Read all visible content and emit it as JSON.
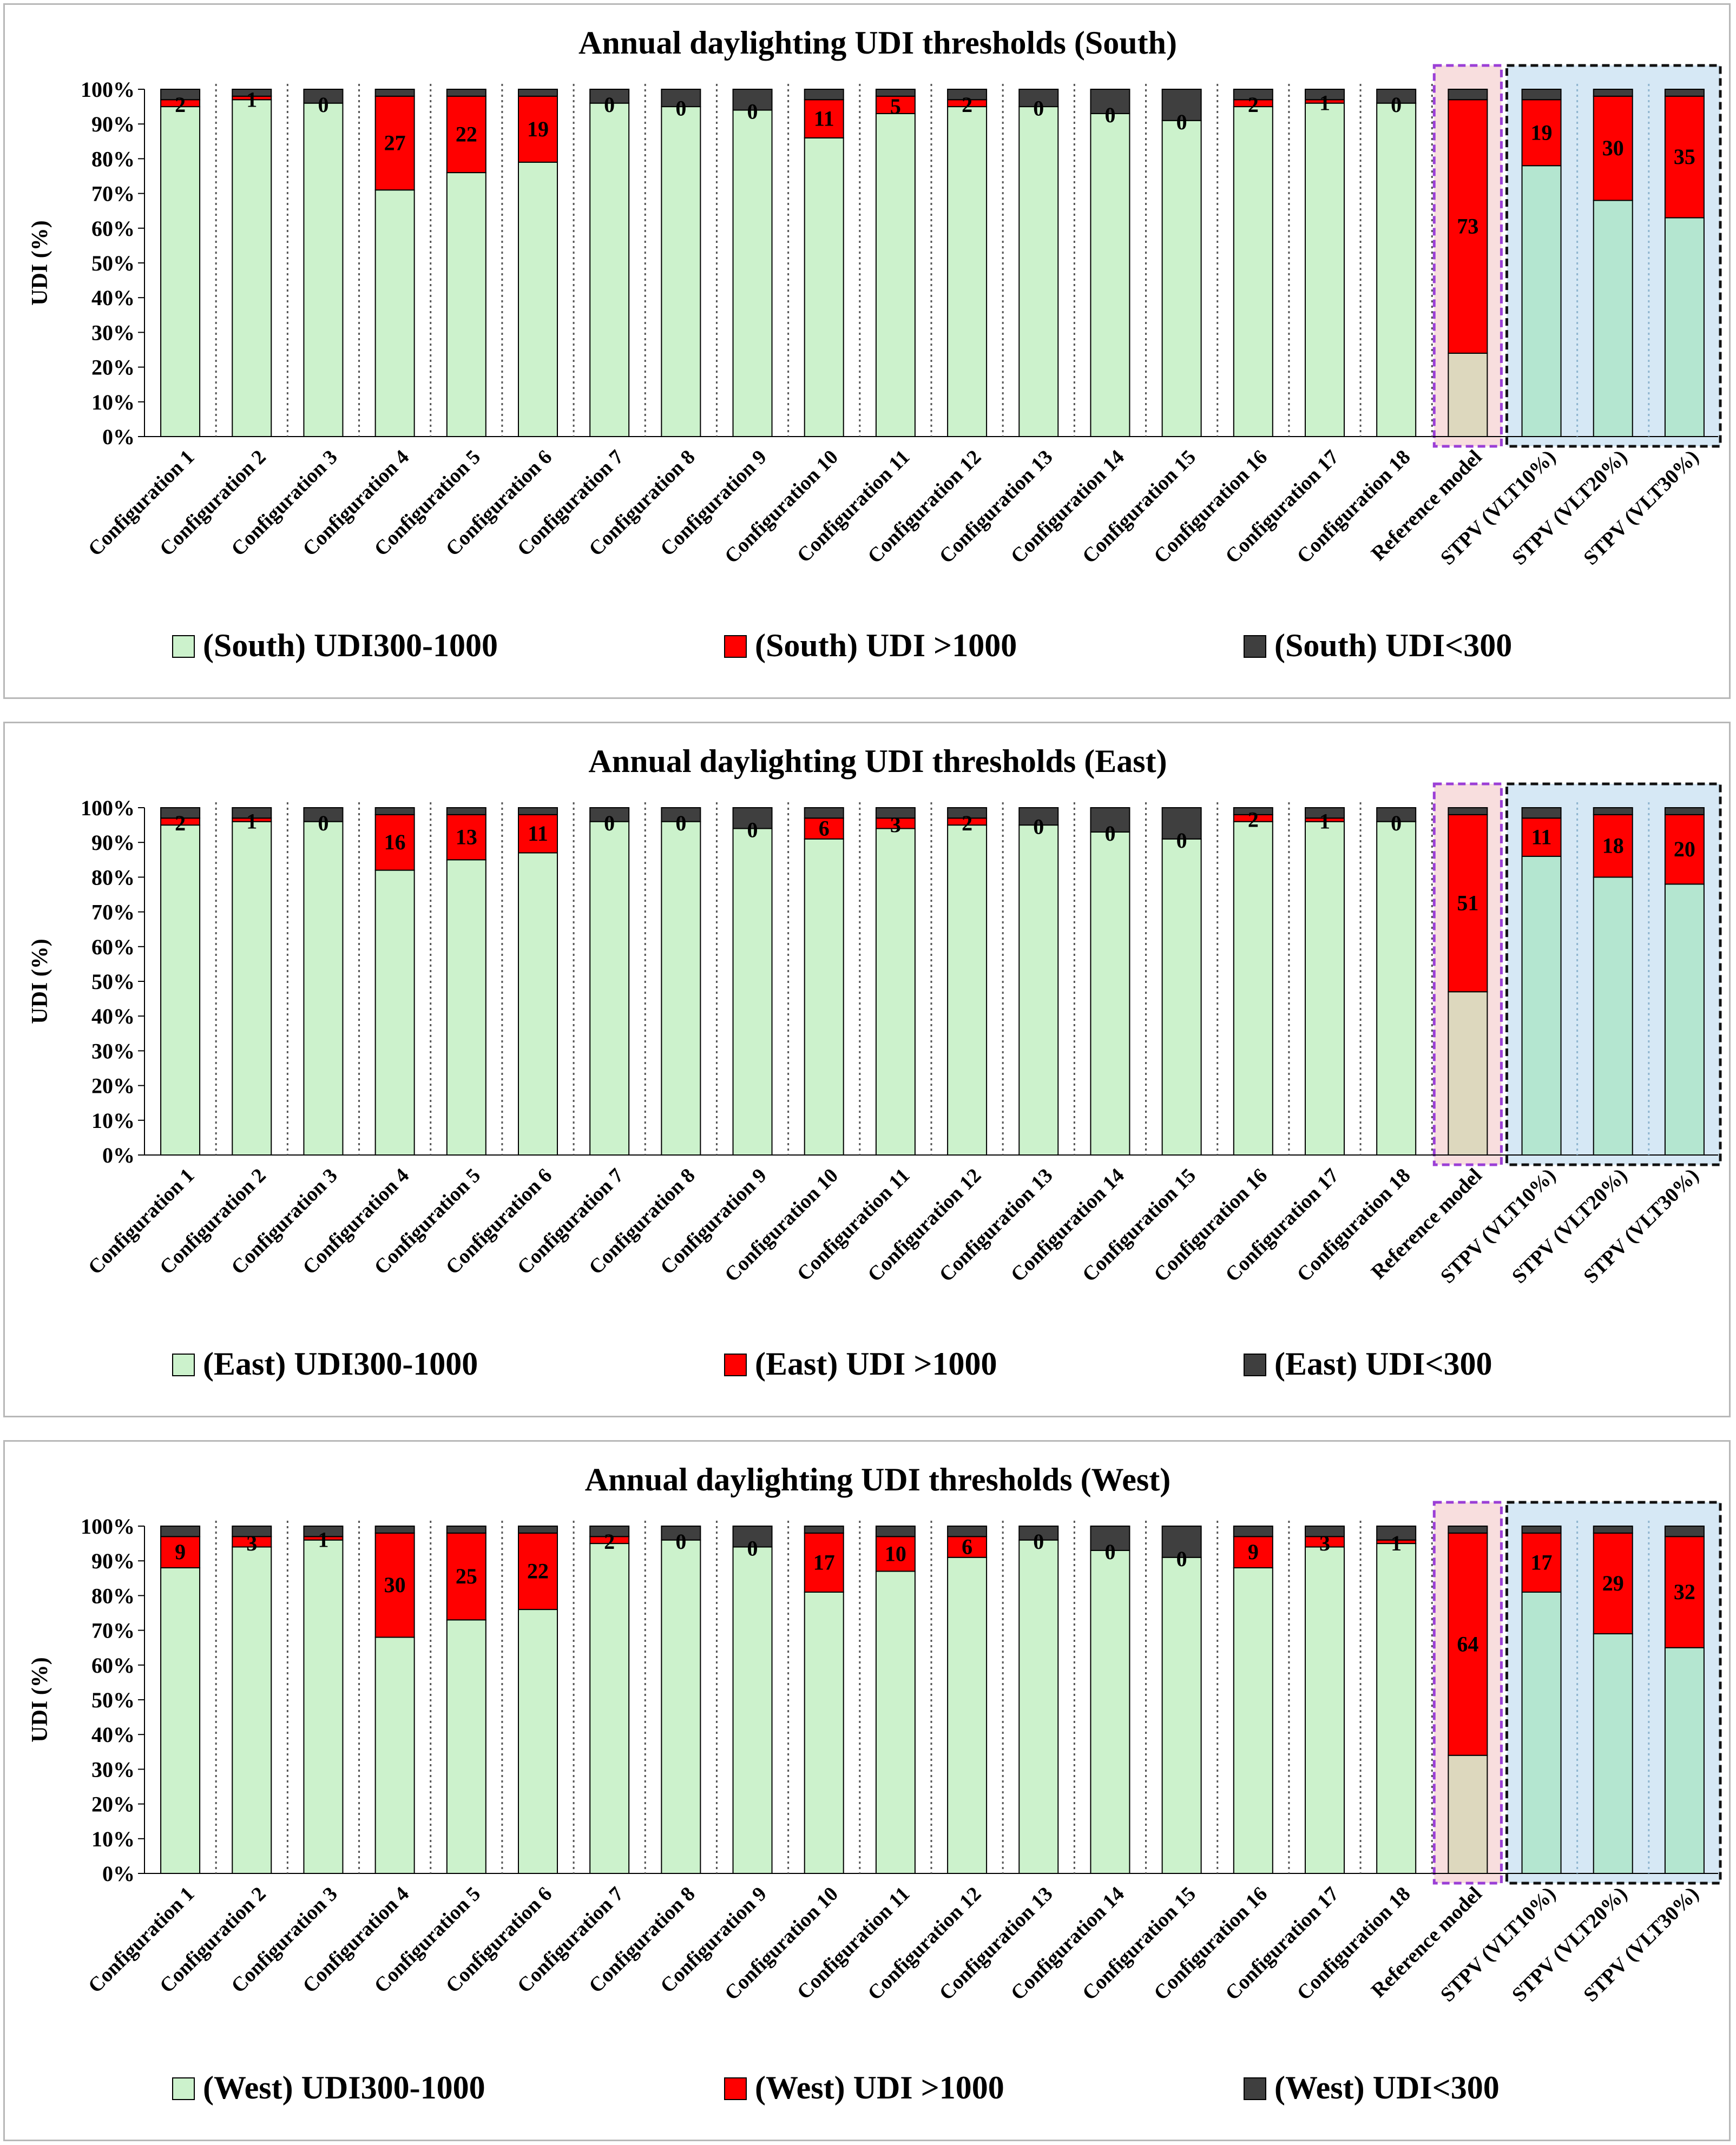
{
  "chart_data": [
    {
      "type": "bar",
      "stacked": true,
      "title": "Annual daylighting UDI thresholds (South)",
      "ylabel": "UDI (%)",
      "xlabel": "",
      "ylim": [
        0,
        100
      ],
      "yticks": [
        "0%",
        "10%",
        "20%",
        "30%",
        "40%",
        "50%",
        "60%",
        "70%",
        "80%",
        "90%",
        "100%"
      ],
      "categories": [
        "Configuration 1",
        "Configuration 2",
        "Configuration 3",
        "Configuration 4",
        "Configuration 5",
        "Configuration 6",
        "Configuration 7",
        "Configuration 8",
        "Configuration 9",
        "Configuration 10",
        "Configuration 11",
        "Configuration 12",
        "Configuration 13",
        "Configuration 14",
        "Configuration 15",
        "Configuration 16",
        "Configuration 17",
        "Configuration 18",
        "Reference model",
        "STPV (VLT10%)",
        "STPV (VLT20%)",
        "STPV (VLT30%)"
      ],
      "series": [
        {
          "name": "(South) UDI300-1000",
          "values": [
            95,
            97,
            96,
            71,
            76,
            79,
            96,
            95,
            94,
            86,
            93,
            95,
            95,
            93,
            91,
            95,
            96,
            96,
            24,
            78,
            68,
            63
          ]
        },
        {
          "name": "(South) UDI >1000",
          "values": [
            2,
            1,
            0,
            27,
            22,
            19,
            0,
            0,
            0,
            11,
            5,
            2,
            0,
            0,
            0,
            2,
            1,
            0,
            73,
            19,
            30,
            35
          ]
        },
        {
          "name": "(South) UDI<300",
          "values": [
            3,
            2,
            4,
            2,
            2,
            2,
            4,
            5,
            6,
            3,
            2,
            3,
            5,
            7,
            9,
            3,
            3,
            4,
            3,
            3,
            2,
            2
          ]
        }
      ],
      "data_labels": [
        "2",
        "1",
        "0",
        "27",
        "22",
        "19",
        "0",
        "0",
        "0",
        "11",
        "5",
        "2",
        "0",
        "0",
        "0",
        "2",
        "1",
        "0",
        "73",
        "19",
        "30",
        "35"
      ],
      "legend_position": "bottom"
    },
    {
      "type": "bar",
      "stacked": true,
      "title": "Annual daylighting UDI thresholds (East)",
      "ylabel": "UDI (%)",
      "xlabel": "",
      "ylim": [
        0,
        100
      ],
      "yticks": [
        "0%",
        "10%",
        "20%",
        "30%",
        "40%",
        "50%",
        "60%",
        "70%",
        "80%",
        "90%",
        "100%"
      ],
      "categories": [
        "Configuration 1",
        "Configuration 2",
        "Configuration 3",
        "Configuration 4",
        "Configuration 5",
        "Configuration 6",
        "Configuration 7",
        "Configuration 8",
        "Configuration 9",
        "Configuration 10",
        "Configuration 11",
        "Configuration 12",
        "Configuration 13",
        "Configuration 14",
        "Configuration 15",
        "Configuration 16",
        "Configuration 17",
        "Configuration 18",
        "Reference model",
        "STPV (VLT10%)",
        "STPV (VLT20%)",
        "STPV (VLT30%)"
      ],
      "series": [
        {
          "name": "(East) UDI300-1000",
          "values": [
            95,
            96,
            96,
            82,
            85,
            87,
            96,
            96,
            94,
            91,
            94,
            95,
            95,
            93,
            91,
            96,
            96,
            96,
            47,
            86,
            80,
            78
          ]
        },
        {
          "name": "(East) UDI >1000",
          "values": [
            2,
            1,
            0,
            16,
            13,
            11,
            0,
            0,
            0,
            6,
            3,
            2,
            0,
            0,
            0,
            2,
            1,
            0,
            51,
            11,
            18,
            20
          ]
        },
        {
          "name": "(East) UDI<300",
          "values": [
            3,
            3,
            4,
            2,
            2,
            2,
            4,
            4,
            6,
            3,
            3,
            3,
            5,
            7,
            9,
            2,
            3,
            4,
            2,
            3,
            2,
            2
          ]
        }
      ],
      "data_labels": [
        "2",
        "1",
        "0",
        "16",
        "13",
        "11",
        "0",
        "0",
        "0",
        "6",
        "3",
        "2",
        "0",
        "0",
        "0",
        "2",
        "1",
        "0",
        "51",
        "11",
        "18",
        "20"
      ],
      "legend_position": "bottom"
    },
    {
      "type": "bar",
      "stacked": true,
      "title": "Annual daylighting UDI thresholds (West)",
      "ylabel": "UDI (%)",
      "xlabel": "",
      "ylim": [
        0,
        100
      ],
      "yticks": [
        "0%",
        "10%",
        "20%",
        "30%",
        "40%",
        "50%",
        "60%",
        "70%",
        "80%",
        "90%",
        "100%"
      ],
      "categories": [
        "Configuration 1",
        "Configuration 2",
        "Configuration 3",
        "Configuration 4",
        "Configuration 5",
        "Configuration 6",
        "Configuration 7",
        "Configuration 8",
        "Configuration 9",
        "Configuration 10",
        "Configuration 11",
        "Configuration 12",
        "Configuration 13",
        "Configuration 14",
        "Configuration 15",
        "Configuration 16",
        "Configuration 17",
        "Configuration 18",
        "Reference model",
        "STPV (VLT10%)",
        "STPV (VLT20%)",
        "STPV (VLT30%)"
      ],
      "series": [
        {
          "name": "(West) UDI300-1000",
          "values": [
            88,
            94,
            96,
            68,
            73,
            76,
            95,
            96,
            94,
            81,
            87,
            91,
            96,
            93,
            91,
            88,
            94,
            95,
            34,
            81,
            69,
            65
          ]
        },
        {
          "name": "(West) UDI >1000",
          "values": [
            9,
            3,
            1,
            30,
            25,
            22,
            2,
            0,
            0,
            17,
            10,
            6,
            0,
            0,
            0,
            9,
            3,
            1,
            64,
            17,
            29,
            32
          ]
        },
        {
          "name": "(West) UDI<300",
          "values": [
            3,
            3,
            3,
            2,
            2,
            2,
            3,
            4,
            6,
            2,
            3,
            3,
            4,
            7,
            9,
            3,
            3,
            4,
            2,
            2,
            2,
            3
          ]
        }
      ],
      "data_labels": [
        "9",
        "3",
        "1",
        "30",
        "25",
        "22",
        "2",
        "0",
        "0",
        "17",
        "10",
        "6",
        "0",
        "0",
        "0",
        "9",
        "3",
        "1",
        "64",
        "17",
        "29",
        "32"
      ],
      "legend_position": "bottom"
    }
  ],
  "colors": {
    "udi_mid": "#ccf2cc",
    "udi_high": "#ff0000",
    "udi_low": "#3f3f3f",
    "reference_fill": "#ddd8be",
    "reference_bg": "#f8dede",
    "reference_border": "#9b3fd6",
    "stpv_fill": "#b4e6d0",
    "stpv_bg": "#d6e8f5",
    "stpv_border": "#111111",
    "separator": "#555555"
  }
}
